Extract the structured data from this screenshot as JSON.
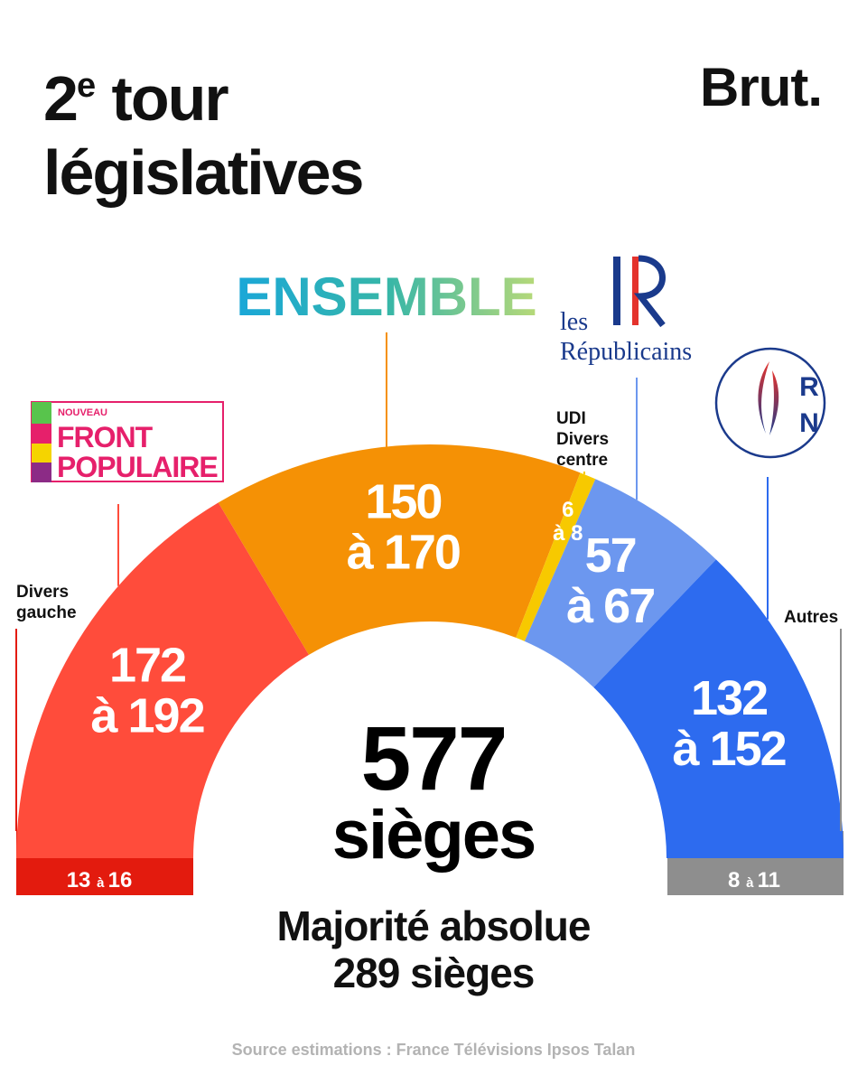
{
  "title": {
    "prefix": "2",
    "sup": "e",
    "line1_rest": " tour",
    "line2": "législatives"
  },
  "brand": "Brut.",
  "logos": {
    "nfp": {
      "small": "NOUVEAU",
      "line1": "FRONT",
      "line2": "POPULAIRE"
    },
    "ensemble": "ENSEMBLE",
    "lr": {
      "mark": "LR",
      "line1": "les",
      "line2": "Républicains"
    },
    "rn": {
      "r": "R",
      "n": "N"
    }
  },
  "labels": {
    "divers_gauche": [
      "Divers",
      "gauche"
    ],
    "udi": [
      "UDI",
      "Divers",
      "centre"
    ],
    "autres": "Autres"
  },
  "chart_data": {
    "type": "hemicycle",
    "total_label": [
      "577",
      "sièges"
    ],
    "majority_label": [
      "Majorité absolue",
      "289 sièges"
    ],
    "series": [
      {
        "party": "Divers gauche",
        "min": 13,
        "max": 16,
        "label": [
          "13",
          "à",
          "16"
        ],
        "color": "#e31b0e"
      },
      {
        "party": "Nouveau Front Populaire",
        "min": 172,
        "max": 192,
        "label": [
          "172",
          "à 192"
        ],
        "color": "#ff4c3b"
      },
      {
        "party": "Ensemble",
        "min": 150,
        "max": 170,
        "label": [
          "150",
          "à 170"
        ],
        "color": "#f59105"
      },
      {
        "party": "UDI / Divers centre",
        "min": 6,
        "max": 8,
        "label": [
          "6",
          "à 8"
        ],
        "color": "#f7c900"
      },
      {
        "party": "Les Républicains",
        "min": 57,
        "max": 67,
        "label": [
          "57",
          "à 67"
        ],
        "color": "#6c97ef"
      },
      {
        "party": "Rassemblement National",
        "min": 132,
        "max": 152,
        "label": [
          "132",
          "à 152"
        ],
        "color": "#2d6bef"
      },
      {
        "party": "Autres",
        "min": 8,
        "max": 11,
        "label": [
          "8",
          "à",
          "11"
        ],
        "color": "#8e8e8e"
      }
    ]
  },
  "source": "Source estimations : France Télévisions Ipsos Talan"
}
